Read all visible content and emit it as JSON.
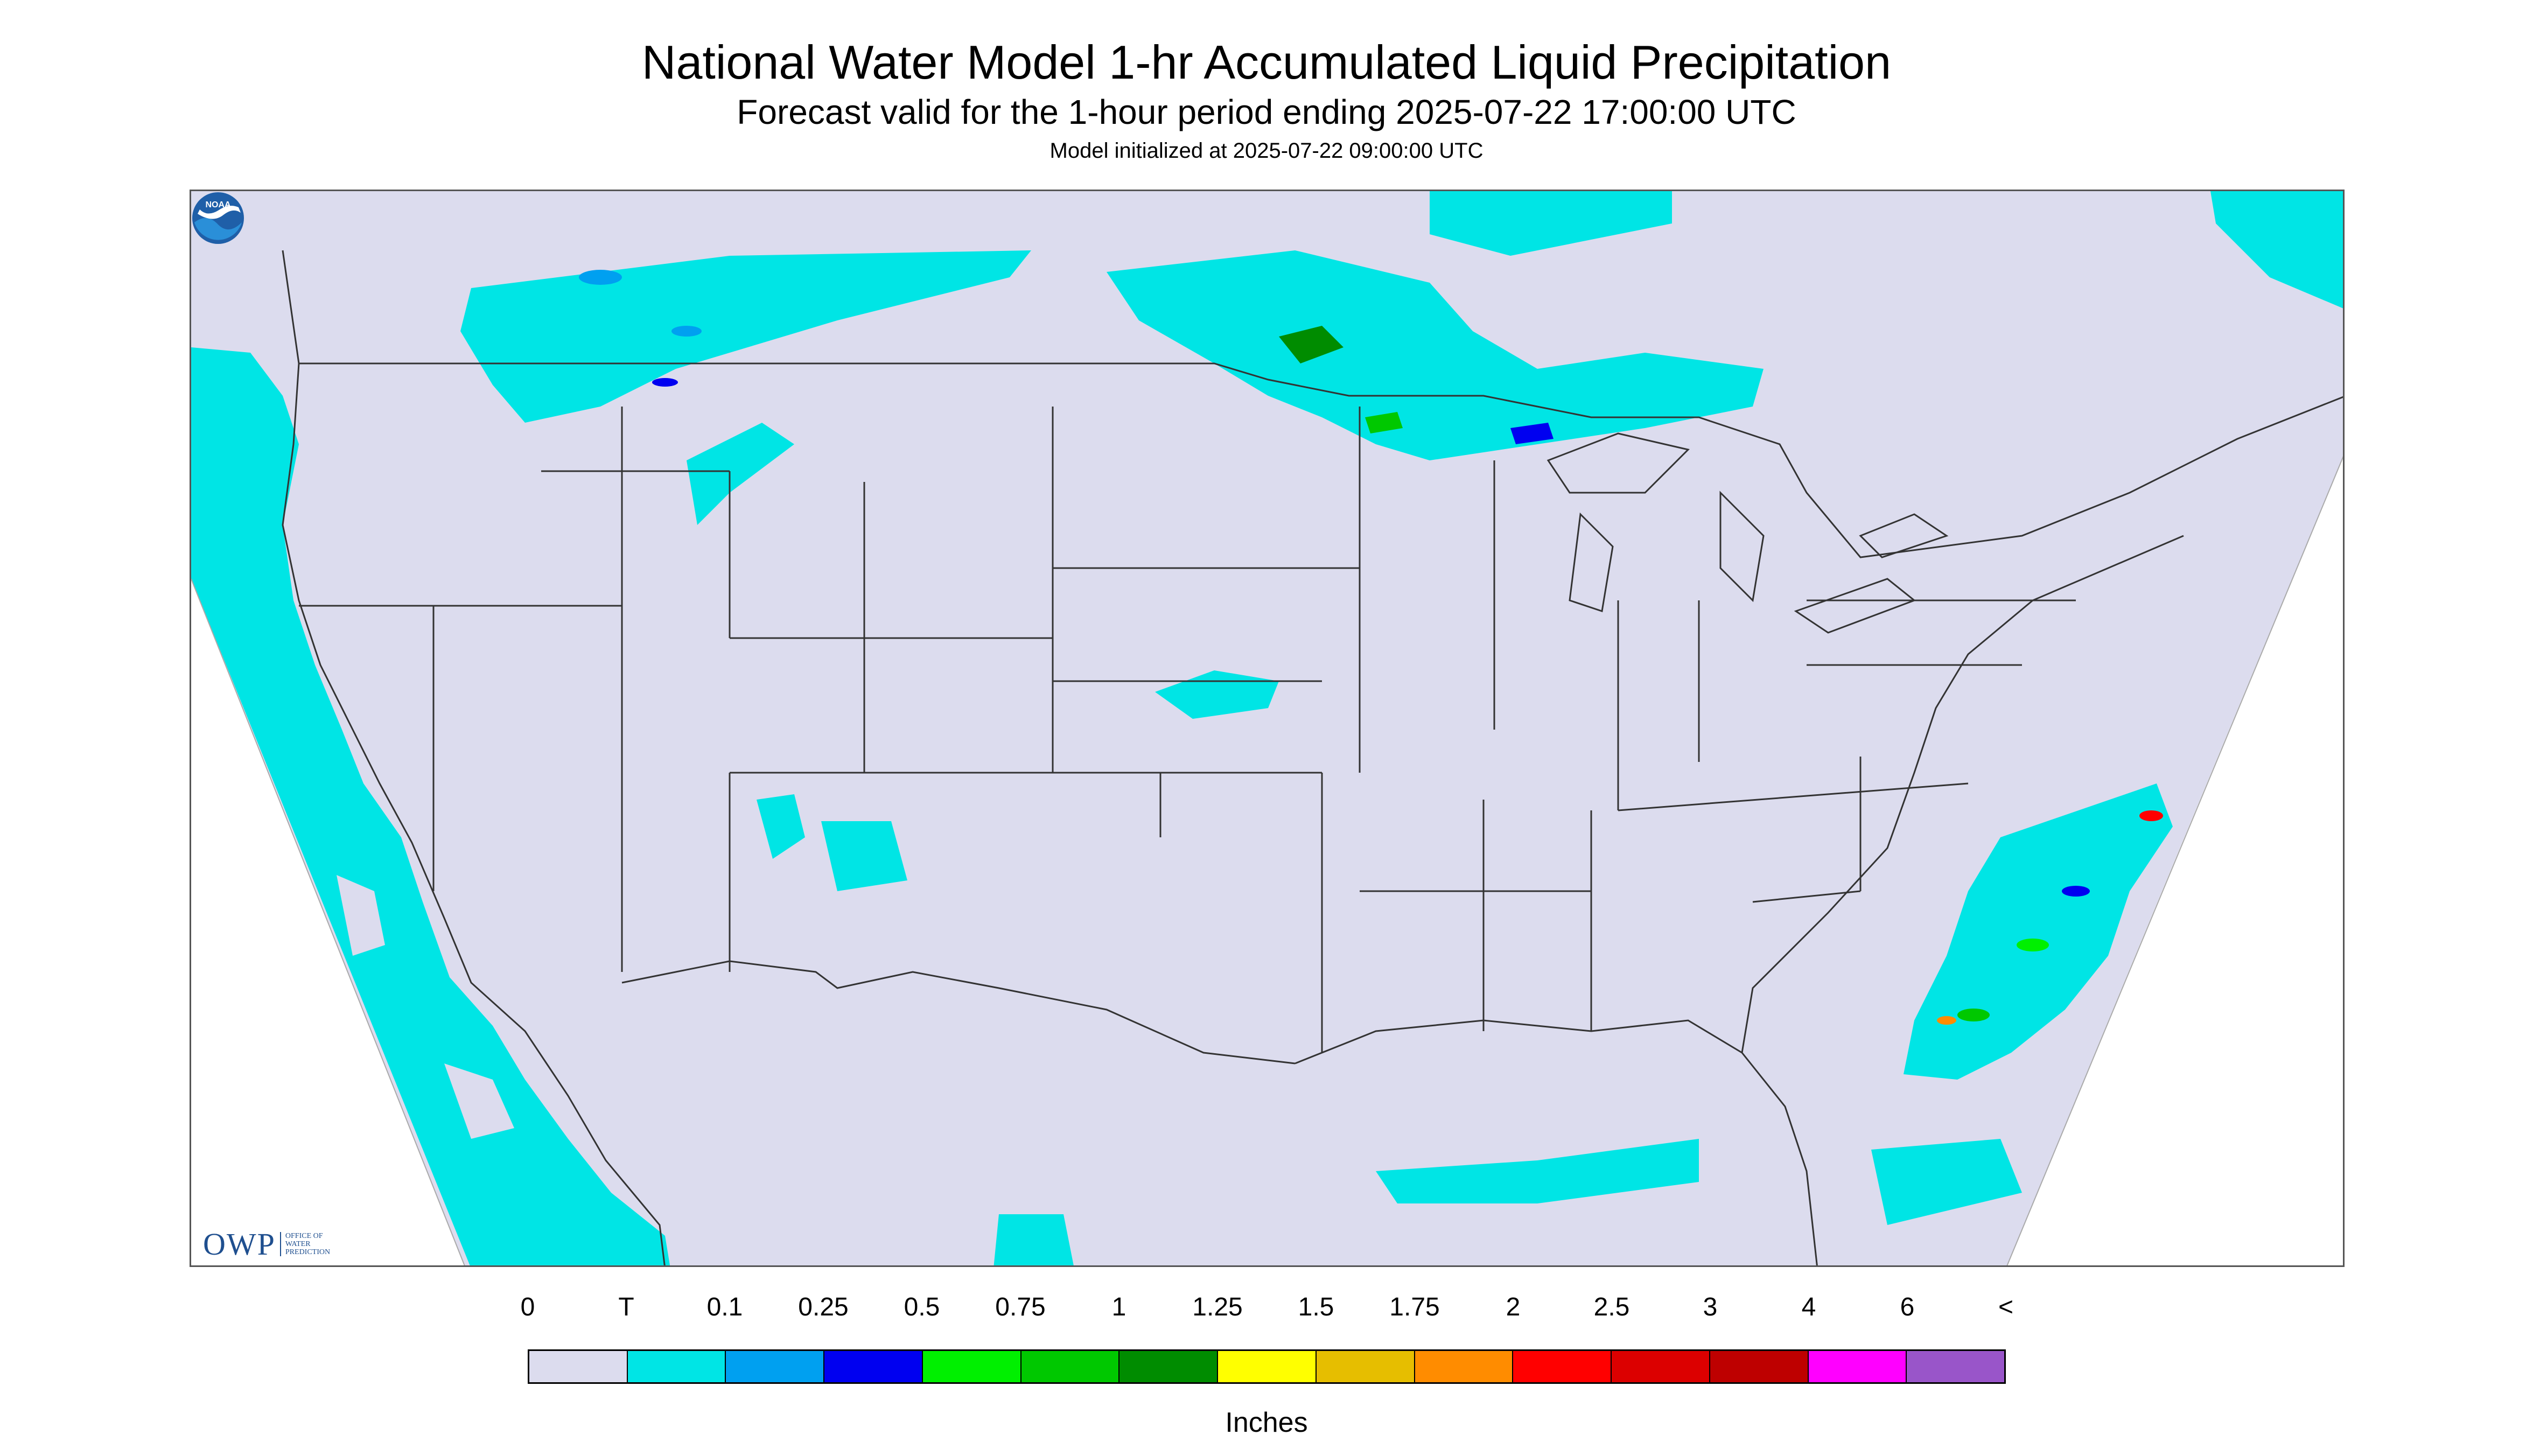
{
  "title": "National Water Model 1-hr Accumulated Liquid Precipitation",
  "subtitle": "Forecast valid for the 1-hour period ending 2025-07-22 17:00:00 UTC",
  "init": "Model initialized at 2025-07-22 09:00:00 UTC",
  "logos": {
    "owp_big": "OWP",
    "owp_small": [
      "OFFICE OF",
      "WATER",
      "PREDICTION"
    ],
    "noaa": "NOAA"
  },
  "legend": {
    "units": "Inches",
    "tick_labels": [
      "0",
      "T",
      "0.1",
      "0.25",
      "0.5",
      "0.75",
      "1",
      "1.25",
      "1.5",
      "1.75",
      "2",
      "2.5",
      "3",
      "4",
      "6",
      "<"
    ],
    "colors": [
      "#dcdcee",
      "#00e5e5",
      "#00a0f0",
      "#0000f0",
      "#00f000",
      "#00c800",
      "#008c00",
      "#ffff00",
      "#e6be00",
      "#ff8c00",
      "#ff0000",
      "#dc0000",
      "#be0000",
      "#ff00ff",
      "#9955c9"
    ]
  },
  "map": {
    "background_color": "#dcdcee",
    "offdomain_color": "#ffffff",
    "boundary_color": "#333333"
  }
}
